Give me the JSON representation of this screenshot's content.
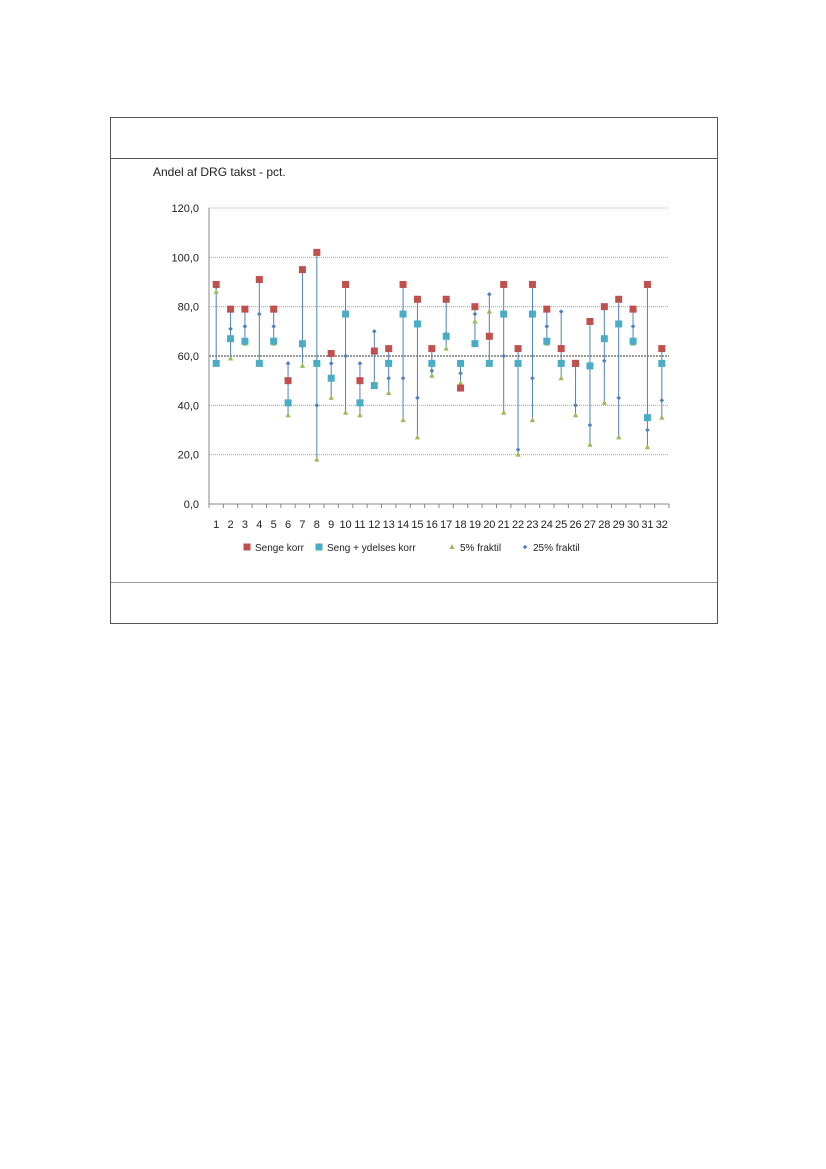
{
  "chart_data": {
    "type": "scatter",
    "ylabel": "Andel af DRG takst - pct.",
    "ylim": [
      0,
      120
    ],
    "yticks": [
      "0,0",
      "20,0",
      "40,0",
      "60,0",
      "80,0",
      "100,0",
      "120,0"
    ],
    "grid": true,
    "reference_line": 60,
    "categories": [
      "1",
      "2",
      "3",
      "4",
      "5",
      "6",
      "7",
      "8",
      "9",
      "10",
      "11",
      "12",
      "13",
      "14",
      "15",
      "16",
      "17",
      "18",
      "19",
      "20",
      "21",
      "22",
      "23",
      "24",
      "25",
      "26",
      "27",
      "28",
      "29",
      "30",
      "31",
      "32"
    ],
    "legend_position": "bottom",
    "series": [
      {
        "name": "Senge korr",
        "color": "#c0504d",
        "marker": "square",
        "values": [
          89,
          79,
          79,
          91,
          79,
          50,
          95,
          102,
          61,
          89,
          50,
          62,
          63,
          89,
          83,
          63,
          83,
          47,
          80,
          68,
          89,
          63,
          89,
          79,
          63,
          57,
          74,
          80,
          83,
          79,
          89,
          63
        ]
      },
      {
        "name": "Seng + ydelses korr",
        "color": "#4bacc6",
        "marker": "square",
        "values": [
          57,
          67,
          66,
          57,
          66,
          41,
          65,
          57,
          51,
          77,
          41,
          48,
          57,
          77,
          73,
          57,
          68,
          57,
          65,
          57,
          77,
          57,
          77,
          66,
          57,
          57,
          56,
          67,
          73,
          66,
          35,
          57
        ]
      },
      {
        "name": "5% fraktil",
        "color": "#9bbb59",
        "marker": "triangle",
        "values": [
          86,
          59,
          65,
          58,
          65,
          36,
          56,
          18,
          43,
          37,
          36,
          49,
          45,
          34,
          27,
          52,
          63,
          49,
          74,
          78,
          37,
          20,
          34,
          65,
          51,
          36,
          24,
          41,
          27,
          65,
          23,
          35
        ]
      },
      {
        "name": "25% fraktil",
        "color": "#4f81bd",
        "marker": "diamond",
        "values": [
          88,
          71,
          72,
          77,
          72,
          57,
          64,
          40,
          57,
          60,
          57,
          70,
          51,
          51,
          43,
          54,
          69,
          53,
          77,
          85,
          60,
          22,
          51,
          72,
          78,
          40,
          32,
          58,
          43,
          72,
          30,
          42
        ]
      }
    ]
  }
}
